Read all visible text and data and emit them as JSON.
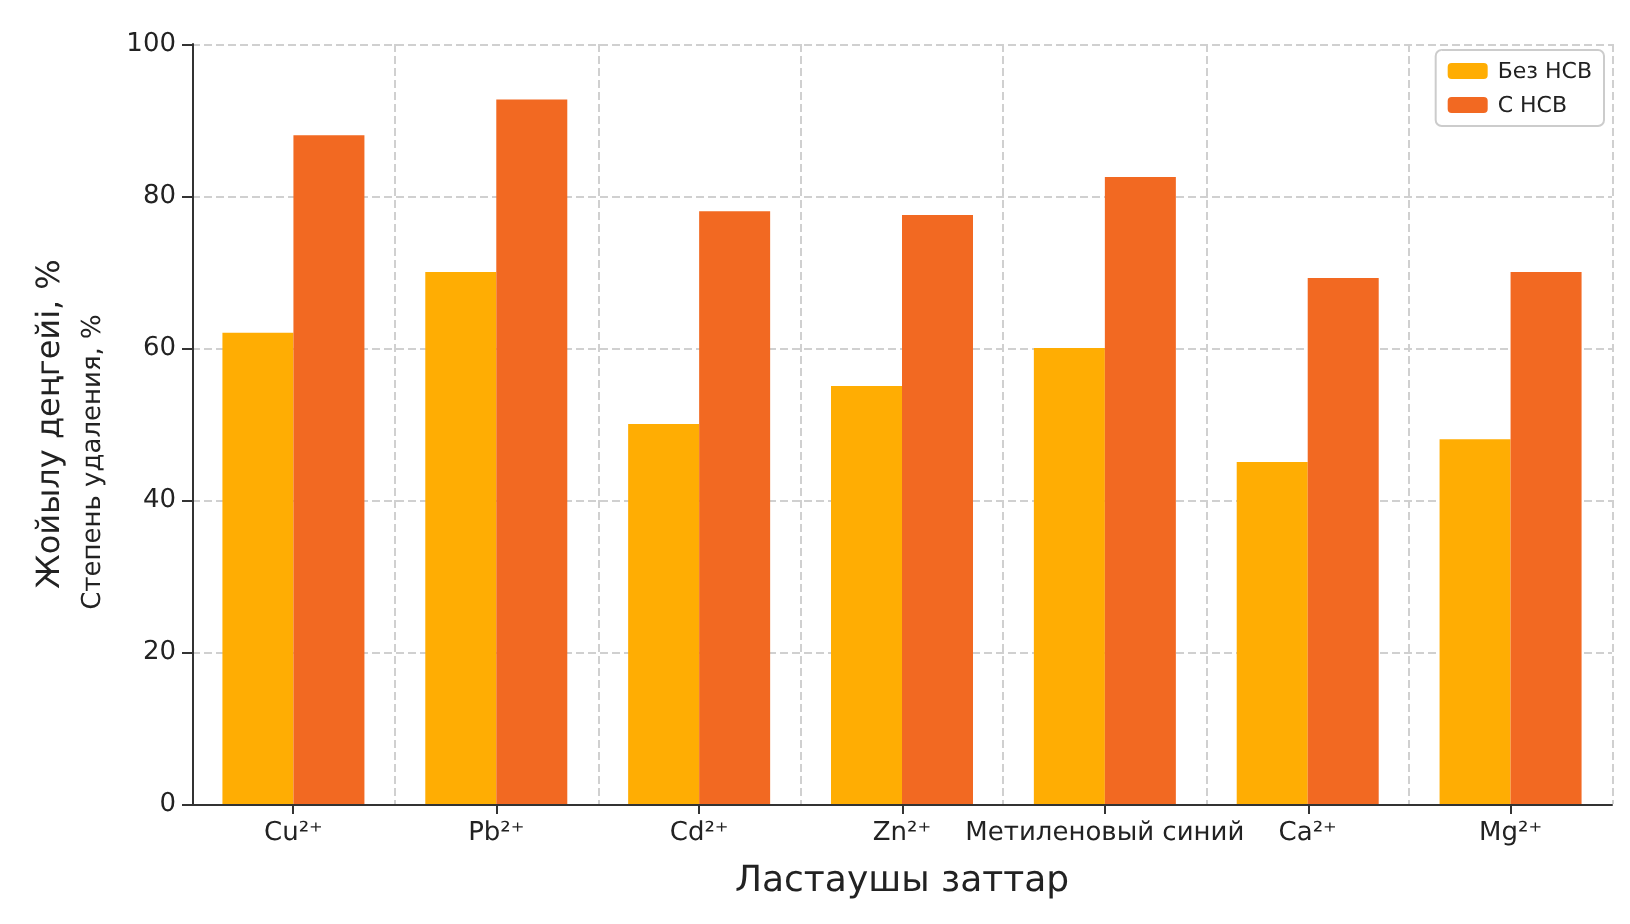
{
  "chart_data": {
    "type": "bar",
    "xlabel": "Ластаушы заттар",
    "ylabel": "Жойылу деңгейі, %",
    "annotations": [
      "Степень удаления, %"
    ],
    "categories": [
      "Cu²⁺",
      "Pb²⁺",
      "Cd²⁺",
      "Zn²⁺",
      "Метиленовый синий",
      "Ca²⁺",
      "Mg²⁺"
    ],
    "series": [
      {
        "name": "Без НСВ",
        "color": "#ffad03",
        "values": [
          62,
          70,
          50,
          55,
          60,
          45,
          48
        ]
      },
      {
        "name": "С НСВ",
        "color": "#f26922",
        "values": [
          88,
          92.7,
          78,
          77.5,
          82.5,
          69.2,
          70
        ]
      }
    ],
    "ylim": [
      0,
      100
    ],
    "yticks": [
      0,
      20,
      40,
      60,
      80,
      100
    ],
    "grid": true,
    "legend": "top right"
  }
}
